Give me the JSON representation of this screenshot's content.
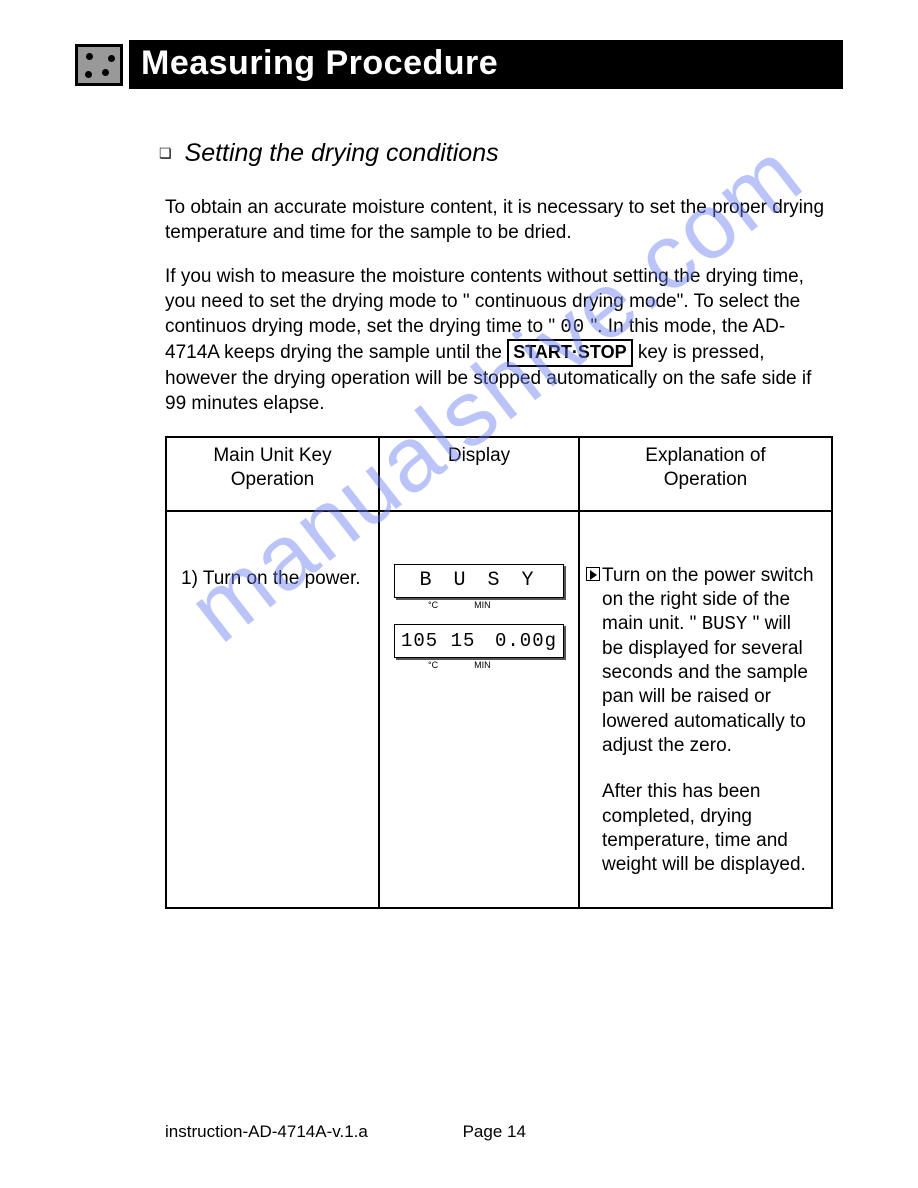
{
  "header": {
    "title": "Measuring  Procedure"
  },
  "subtitle": "Setting the drying conditions",
  "para1": "To obtain an accurate moisture content, it is necessary to set the proper drying temperature and time for the sample to be dried.",
  "para2_a": "If you wish to measure the moisture contents without setting the drying time, you need to set the drying mode to \" continuous drying mode\". To select the continuos drying mode, set the drying time to \" ",
  "para2_seg": "00",
  "para2_b": " \". In this mode, the AD-4714A keeps drying the sample until the ",
  "para2_key": "START·STOP",
  "para2_c": " key is pressed, however the drying operation will be stopped automatically on the safe side if 99 minutes elapse.",
  "table": {
    "headers": {
      "c1a": "Main Unit  Key",
      "c1b": "Operation",
      "c2": "Display",
      "c3a": "Explanation of",
      "c3b": "Operation"
    },
    "row": {
      "op": "1) Turn on the power.",
      "display1": "B U S Y",
      "display2_left": "105 15",
      "display2_right": "0.00g",
      "label_c": "°C",
      "label_min": "MIN",
      "expl1": "Turn on the power switch on the right side of the main unit. \" ",
      "expl1_seg": "BUSY",
      "expl1b": " \" will be displayed for several seconds and the sample pan will be raised or lowered automatically to adjust the zero.",
      "expl2": "After this has been completed, drying temperature, time and weight will be displayed."
    }
  },
  "footer": {
    "doc": "instruction-AD-4714A-v.1.a",
    "page": "Page 14"
  },
  "watermark": "manualshive.com"
}
